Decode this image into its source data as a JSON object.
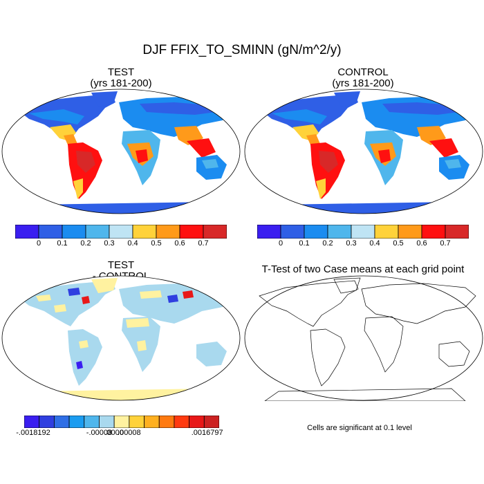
{
  "figure": {
    "title": "DJF FFIX_TO_SMINN (gN/m^2/y)"
  },
  "panels": {
    "test": {
      "title": "TEST",
      "subtitle": "(yrs 181-200)"
    },
    "control": {
      "title": "CONTROL",
      "subtitle": "(yrs 181-200)"
    },
    "diff": {
      "title": "TEST",
      "subtitle": "- CONTROL"
    },
    "ttest": {
      "title": "T-Test of two Case means at each grid point"
    }
  },
  "colorbar_main": {
    "colors": [
      "#3a1ef0",
      "#2f5fe6",
      "#1b8cf0",
      "#4fb6ec",
      "#bfe4f4",
      "#ffd23a",
      "#ff9a1a",
      "#ff1010",
      "#d82828"
    ],
    "labels": [
      "0",
      "0.1",
      "0.2",
      "0.3",
      "0.4",
      "0.5",
      "0.6",
      "0.7"
    ]
  },
  "colorbar_diff": {
    "colors": [
      "#3a1ef0",
      "#2f3fe0",
      "#2f6fe6",
      "#1b9cf0",
      "#4fb6ec",
      "#a9d9ee",
      "#fff2a0",
      "#ffd23a",
      "#ffb020",
      "#ff7a10",
      "#ff3a10",
      "#e81818",
      "#cc2222"
    ],
    "labels": [
      "-.0018192",
      "-.00008",
      ".0000",
      ".00008",
      ".0016797"
    ]
  },
  "note": "Cells are significant at 0.1 level"
}
